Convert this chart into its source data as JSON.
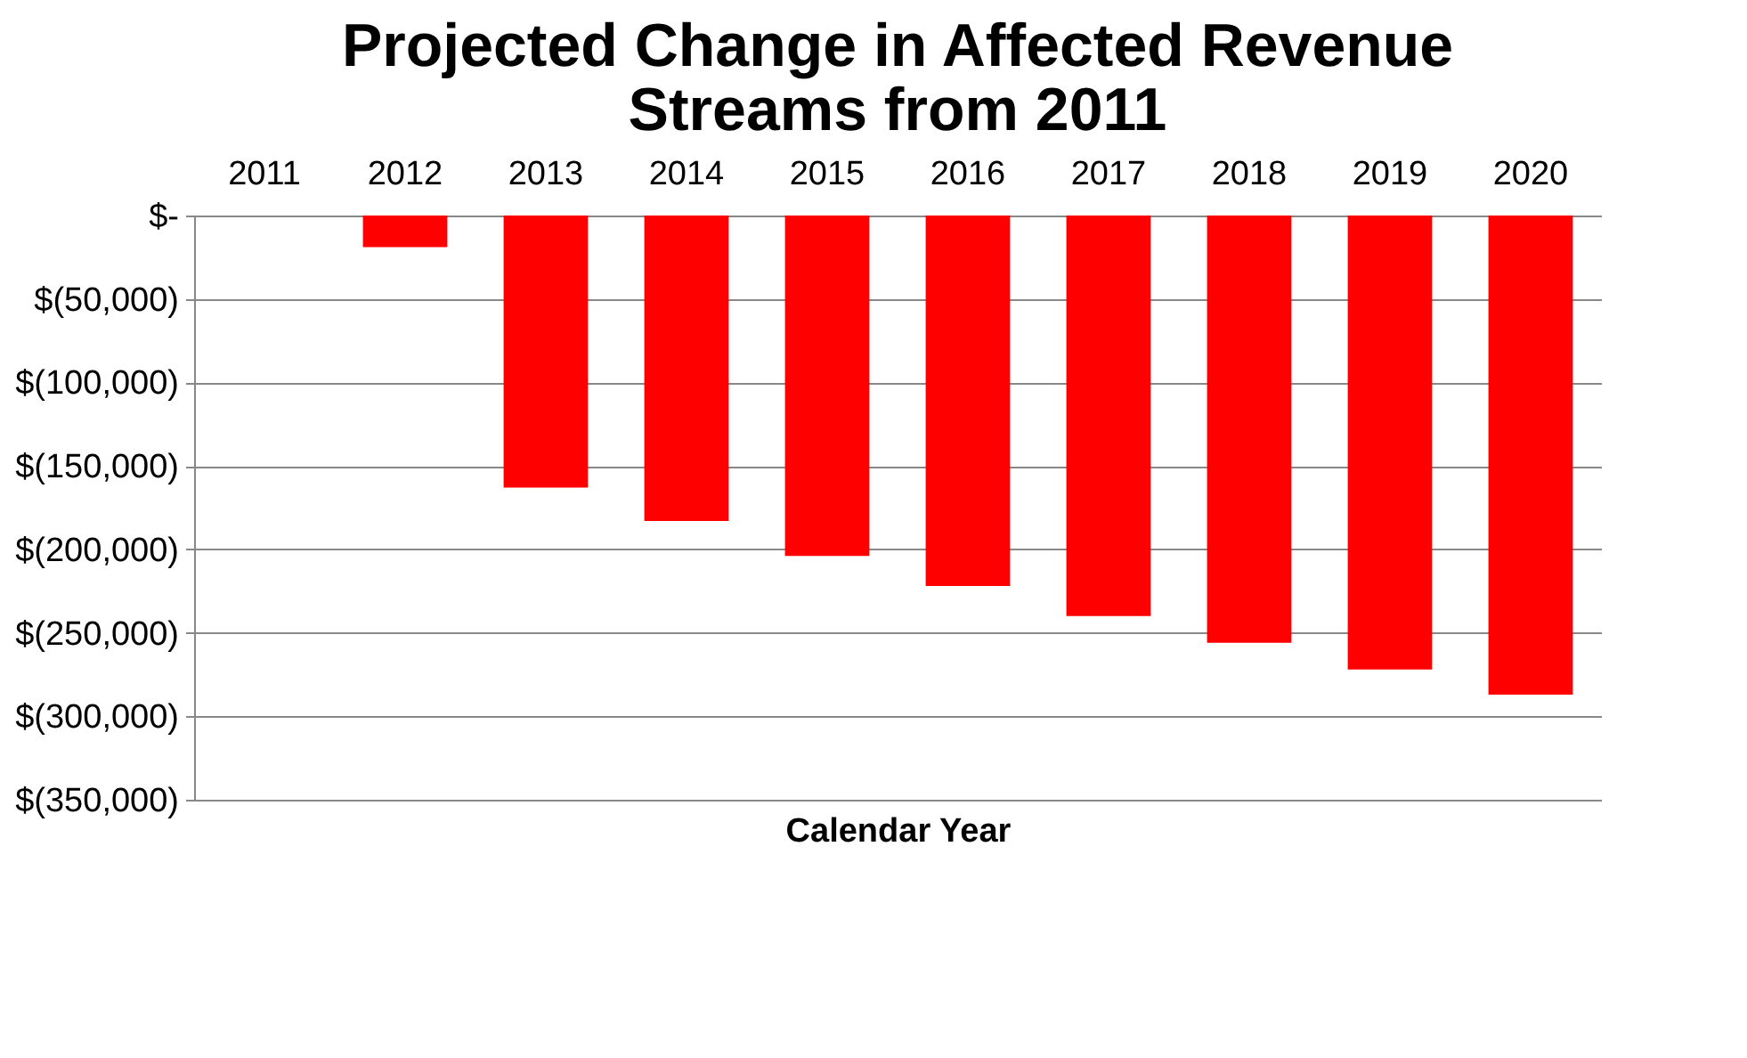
{
  "chart_data": {
    "type": "bar",
    "title": [
      "Projected Change in Affected Revenue",
      "Streams from 2011"
    ],
    "xlabel": "Calendar Year",
    "categories": [
      "2011",
      "2012",
      "2013",
      "2014",
      "2015",
      "2016",
      "2017",
      "2018",
      "2019",
      "2020"
    ],
    "values": [
      0,
      -19000,
      -163000,
      -183000,
      -204000,
      -222000,
      -240000,
      -256000,
      -272000,
      -287000
    ],
    "color": "#ff0000",
    "ylim": [
      -350000,
      0
    ],
    "yticks": [
      {
        "value": 0,
        "label": "$-"
      },
      {
        "value": -50000,
        "label": "$(50,000)"
      },
      {
        "value": -100000,
        "label": "$(100,000)"
      },
      {
        "value": -150000,
        "label": "$(150,000)"
      },
      {
        "value": -200000,
        "label": "$(200,000)"
      },
      {
        "value": -250000,
        "label": "$(250,000)"
      },
      {
        "value": -300000,
        "label": "$(300,000)"
      },
      {
        "value": -350000,
        "label": "$(350,000)"
      }
    ],
    "grid": "y"
  }
}
